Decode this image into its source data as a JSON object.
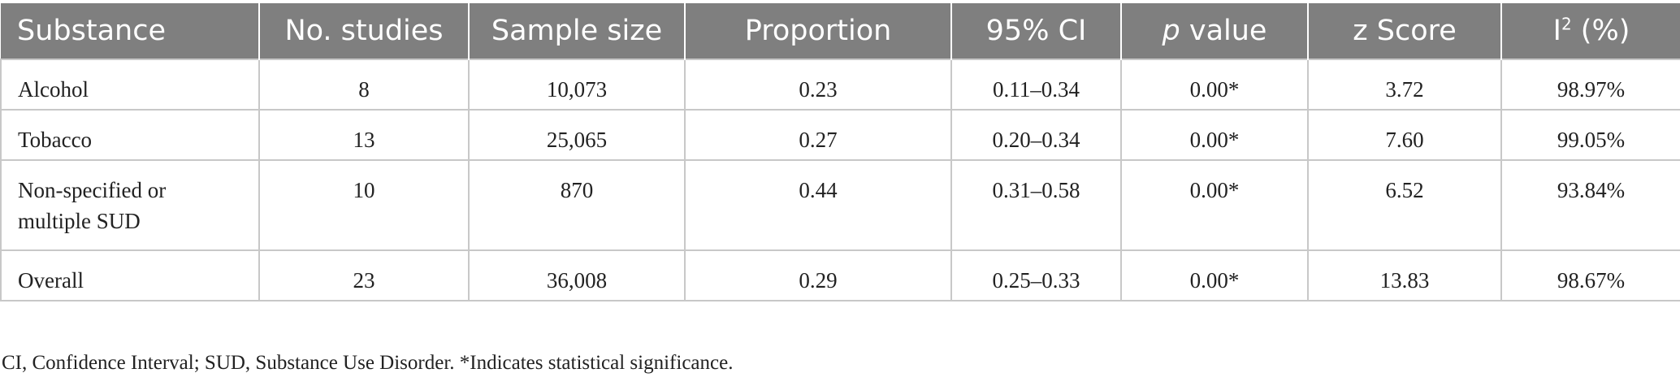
{
  "table": {
    "headers": {
      "substance": "Substance",
      "no_studies": "No. studies",
      "sample_size": "Sample size",
      "proportion": "Proportion",
      "ci": "95% CI",
      "p_value_italic": "p",
      "p_value_rest": " value",
      "z_score": "z Score",
      "i2_base": "I",
      "i2_sup": "2",
      "i2_rest": " (%)"
    },
    "rows": [
      {
        "substance": "Alcohol",
        "no_studies": "8",
        "sample_size": "10,073",
        "proportion": "0.23",
        "ci": "0.11–0.34",
        "p_value": "0.00*",
        "z_score": "3.72",
        "i2": "98.97%"
      },
      {
        "substance": "Tobacco",
        "no_studies": "13",
        "sample_size": "25,065",
        "proportion": "0.27",
        "ci": "0.20–0.34",
        "p_value": "0.00*",
        "z_score": "7.60",
        "i2": "99.05%"
      },
      {
        "substance_line1": "Non-specified or",
        "substance_line2": "multiple SUD",
        "no_studies": "10",
        "sample_size": "870",
        "proportion": "0.44",
        "ci": "0.31–0.58",
        "p_value": "0.00*",
        "z_score": "6.52",
        "i2": "93.84%"
      },
      {
        "substance": "Overall",
        "no_studies": "23",
        "sample_size": "36,008",
        "proportion": "0.29",
        "ci": "0.25–0.33",
        "p_value": "0.00*",
        "z_score": "13.83",
        "i2": "98.67%"
      }
    ]
  },
  "footnote": "CI, Confidence Interval; SUD, Substance Use Disorder. *Indicates statistical significance.",
  "colors": {
    "header_bg": "#7f7f7f",
    "header_text": "#ffffff",
    "border": "#c8c8c8",
    "body_text": "#222222"
  }
}
